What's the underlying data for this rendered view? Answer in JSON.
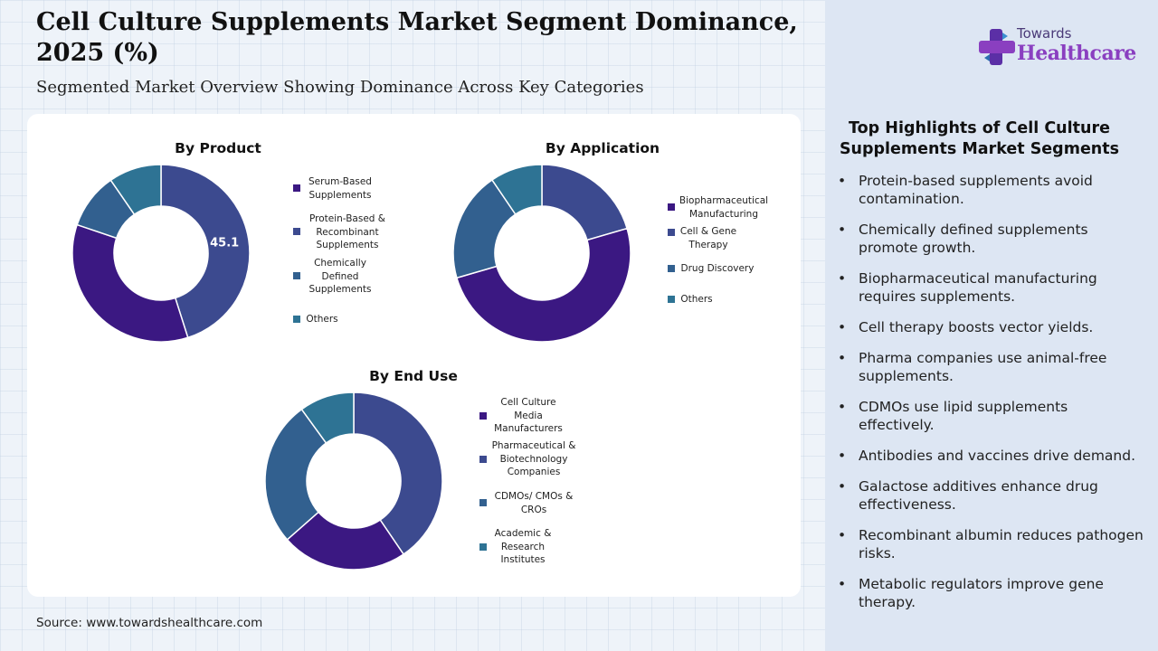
{
  "header": {
    "title": "Cell Culture Supplements Market Segment Dominance, 2025 (%)",
    "subtitle": "Segmented Market Overview Showing Dominance Across Key Categories"
  },
  "brand": {
    "top": "Towards",
    "main": "Healthcare"
  },
  "source": "Source: www.towardshealthcare.com",
  "colors": {
    "deep_purple": "#3b1882",
    "indigo": "#3c4a8f",
    "slate_blue": "#32608f",
    "teal": "#2e7394"
  },
  "highlights": {
    "title": "Top Highlights of Cell Culture Supplements Market Segments",
    "items": [
      "Protein-based supplements avoid contamination.",
      "Chemically defined supplements promote growth.",
      "Biopharmaceutical manufacturing requires supplements.",
      "Cell therapy boosts vector yields.",
      "Pharma companies use animal-free supplements.",
      "CDMOs use lipid supplements effectively.",
      "Antibodies and vaccines drive demand.",
      "Galactose additives enhance drug effectiveness.",
      "Recombinant albumin reduces pathogen risks.",
      "Metabolic regulators improve gene therapy."
    ]
  },
  "chart_data": [
    {
      "type": "pie",
      "title": "By Product",
      "categories": [
        "Serum-Based Supplements",
        "Protein-Based & Recombinant Supplements",
        "Chemically Defined Supplements",
        "Others"
      ],
      "values": [
        35.1,
        45.1,
        10.2,
        9.6
      ],
      "data_labels": [
        "",
        "45.1",
        "",
        ""
      ],
      "colors": [
        "#3b1882",
        "#3c4a8f",
        "#32608f",
        "#2e7394"
      ],
      "legend": "right"
    },
    {
      "type": "pie",
      "title": "By Application",
      "categories": [
        "Biopharmaceutical Manufacturing",
        "Cell & Gene Therapy",
        "Drug Discovery",
        "Others"
      ],
      "values": [
        50.0,
        20.5,
        20.0,
        9.5
      ],
      "data_labels": [
        "",
        "",
        "",
        ""
      ],
      "colors": [
        "#3b1882",
        "#3c4a8f",
        "#32608f",
        "#2e7394"
      ],
      "legend": "right"
    },
    {
      "type": "pie",
      "title": "By End Use",
      "categories": [
        "Cell Culture Media Manufacturers",
        "Pharmaceutical & Biotechnology Companies",
        "CDMOs/ CMOs & CROs",
        "Academic & Research Institutes"
      ],
      "values": [
        23.0,
        40.5,
        26.5,
        10.0
      ],
      "data_labels": [
        "",
        "",
        "",
        ""
      ],
      "colors": [
        "#3b1882",
        "#3c4a8f",
        "#32608f",
        "#2e7394"
      ],
      "legend": "right"
    }
  ]
}
